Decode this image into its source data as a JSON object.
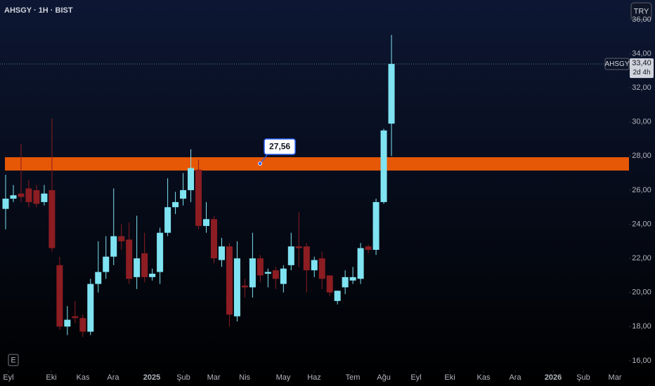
{
  "chart_data": {
    "type": "candlestick",
    "title": "AHSGY · 1H · BIST",
    "currency": "TRY",
    "badge": "E",
    "up_color": "#7fe3f2",
    "down_color": "#8c1d22",
    "x": [
      0,
      1,
      2,
      3,
      4,
      5,
      6,
      7,
      8,
      9,
      10,
      11,
      12,
      13,
      14,
      15,
      16,
      17,
      18,
      19,
      20,
      21,
      22,
      23,
      24,
      25,
      26,
      27,
      28,
      29,
      30,
      31,
      32,
      33,
      34,
      35,
      36,
      37,
      38,
      39,
      40,
      41,
      42,
      43,
      44,
      45,
      46,
      47,
      48,
      49,
      50
    ],
    "open": [
      24.9,
      25.5,
      25.8,
      26.1,
      26.0,
      25.3,
      26.0,
      21.6,
      18.0,
      18.6,
      18.5,
      17.7,
      20.5,
      21.2,
      22.1,
      23.3,
      23.1,
      20.9,
      22.3,
      20.9,
      21.2,
      23.5,
      25.0,
      25.5,
      26.0,
      27.2,
      23.9,
      24.3,
      21.9,
      22.7,
      18.6,
      20.4,
      20.3,
      22.0,
      21.1,
      21.3,
      20.5,
      21.6,
      22.7,
      22.7,
      21.3,
      22.0,
      21.0,
      19.5,
      20.3,
      20.7,
      20.8,
      22.7,
      22.5,
      25.3,
      29.9
    ],
    "high": [
      26.9,
      26.3,
      28.7,
      26.6,
      26.3,
      26.3,
      30.2,
      22.1,
      19.2,
      19.5,
      18.7,
      20.8,
      23.0,
      23.3,
      26.1,
      24.0,
      24.1,
      24.5,
      23.5,
      21.4,
      23.8,
      26.7,
      25.9,
      27.0,
      28.4,
      27.8,
      25.3,
      24.5,
      23.2,
      22.9,
      23.0,
      20.8,
      23.5,
      22.2,
      21.4,
      21.5,
      21.6,
      23.5,
      24.7,
      22.9,
      22.1,
      22.4,
      21.0,
      20.1,
      21.3,
      21.5,
      22.9,
      22.8,
      25.5,
      29.6,
      35.1
    ],
    "low": [
      23.7,
      25.3,
      25.3,
      25.0,
      25.0,
      25.1,
      22.4,
      17.8,
      17.5,
      18.2,
      17.4,
      17.5,
      20.0,
      20.8,
      21.6,
      22.5,
      20.5,
      20.2,
      20.6,
      20.7,
      20.5,
      23.3,
      24.6,
      25.1,
      25.3,
      23.7,
      23.5,
      21.7,
      21.5,
      18.0,
      18.3,
      19.7,
      19.7,
      20.6,
      20.3,
      20.2,
      20.0,
      21.3,
      21.5,
      20.0,
      20.9,
      20.2,
      19.8,
      19.3,
      19.9,
      20.5,
      20.5,
      22.3,
      22.2,
      25.2,
      28.0
    ],
    "close": [
      25.5,
      25.7,
      25.6,
      25.3,
      25.2,
      25.8,
      22.6,
      18.0,
      18.4,
      18.5,
      17.7,
      20.5,
      21.2,
      22.1,
      23.3,
      23.0,
      20.8,
      22.0,
      20.9,
      21.1,
      23.5,
      25.0,
      25.3,
      26.0,
      27.3,
      23.9,
      24.3,
      22.0,
      22.7,
      18.7,
      22.0,
      20.3,
      22.0,
      21.0,
      21.2,
      20.8,
      21.4,
      22.7,
      22.6,
      21.3,
      21.9,
      20.8,
      20.0,
      20.1,
      20.9,
      20.9,
      22.6,
      22.5,
      25.3,
      29.5,
      33.4
    ],
    "xlim": [
      -0.73,
      80.78
    ],
    "xticks": [
      {
        "value": 0.36,
        "label": "Eyl"
      },
      {
        "value": 5.92,
        "label": "Eki"
      },
      {
        "value": 10.02,
        "label": "Kas"
      },
      {
        "value": 13.93,
        "label": "Ara"
      },
      {
        "value": 18.94,
        "label": "2025"
      },
      {
        "value": 23.04,
        "label": "Şub"
      },
      {
        "value": 26.96,
        "label": "Mar"
      },
      {
        "value": 30.97,
        "label": "Nis"
      },
      {
        "value": 35.97,
        "label": "May"
      },
      {
        "value": 39.98,
        "label": "Haz"
      },
      {
        "value": 44.99,
        "label": "Tem"
      },
      {
        "value": 49.0,
        "label": "Ağu"
      },
      {
        "value": 53.19,
        "label": "Eyl"
      },
      {
        "value": 57.56,
        "label": "Eki"
      },
      {
        "value": 61.93,
        "label": "Kas"
      },
      {
        "value": 66.03,
        "label": "Ara"
      },
      {
        "value": 70.95,
        "label": "2026"
      },
      {
        "value": 74.86,
        "label": "Şub"
      },
      {
        "value": 78.96,
        "label": "Mar"
      }
    ],
    "ylim": [
      15.42,
      37.15
    ],
    "yticks": [
      {
        "value": 16,
        "label": "16,00"
      },
      {
        "value": 18,
        "label": "18,00"
      },
      {
        "value": 20,
        "label": "20,00"
      },
      {
        "value": 22,
        "label": "22,00"
      },
      {
        "value": 24,
        "label": "24,00"
      },
      {
        "value": 26,
        "label": "26,00"
      },
      {
        "value": 28,
        "label": "28,00"
      },
      {
        "value": 30,
        "label": "30,00"
      },
      {
        "value": 32,
        "label": "32,00"
      },
      {
        "value": 34,
        "label": "34,00"
      },
      {
        "value": 36,
        "label": "36,00"
      }
    ],
    "zone": {
      "from": 27.15,
      "to": 27.93,
      "color": "#f25c05"
    },
    "annotation": {
      "label": "27,56",
      "value": 27.56,
      "x": 32.97
    },
    "last_price": {
      "symbol": "AHSGY",
      "value": 33.4,
      "label": "33,40",
      "countdown": "2d 4h"
    }
  }
}
